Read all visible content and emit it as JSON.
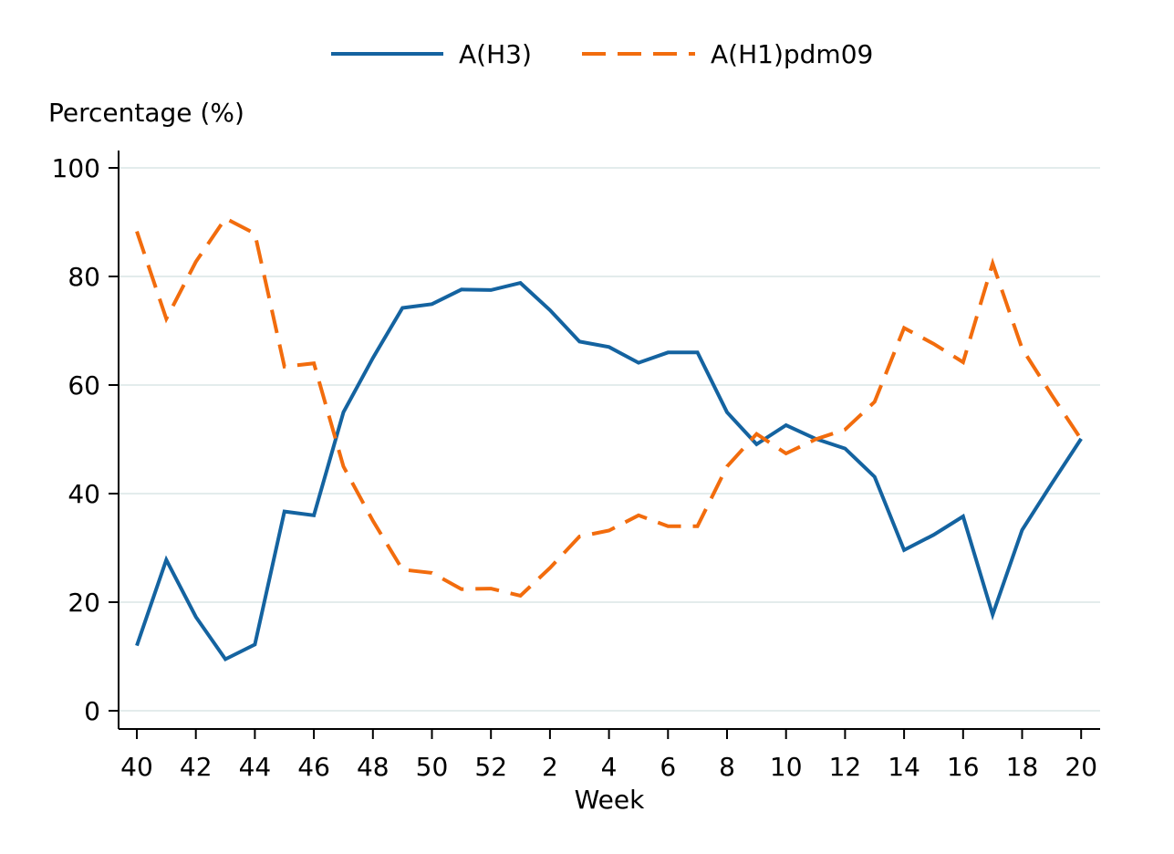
{
  "chart_data": {
    "type": "line",
    "xlabel": "Week",
    "ylabel": "Percentage (%)",
    "ylim": [
      0,
      100
    ],
    "yticks": [
      0,
      20,
      40,
      60,
      80,
      100
    ],
    "grid": true,
    "legend_position": "top",
    "categories": [
      "40",
      "41",
      "42",
      "43",
      "44",
      "45",
      "46",
      "47",
      "48",
      "49",
      "50",
      "51",
      "52",
      "1",
      "2",
      "3",
      "4",
      "5",
      "6",
      "7",
      "8",
      "9",
      "10",
      "11",
      "12",
      "13",
      "14",
      "15",
      "16",
      "17",
      "18",
      "19",
      "20"
    ],
    "xtick_labels": [
      "40",
      "42",
      "44",
      "46",
      "48",
      "50",
      "52",
      "2",
      "4",
      "6",
      "8",
      "10",
      "12",
      "14",
      "16",
      "18",
      "20"
    ],
    "series": [
      {
        "name": "A(H3)",
        "color": "#1463a0",
        "dash": "solid",
        "values": [
          12,
          27.8,
          17.3,
          9.5,
          12.2,
          36.7,
          36,
          55,
          65,
          74.2,
          74.9,
          77.6,
          77.5,
          78.8,
          73.8,
          68,
          67,
          64.1,
          66,
          66,
          55,
          49.1,
          52.6,
          50.1,
          48.3,
          43.1,
          29.6,
          32.4,
          35.8,
          17.7,
          33.3,
          41.8,
          50.1
        ]
      },
      {
        "name": "A(H1)pdm09",
        "color": "#f26c0d",
        "dash": "dashed",
        "values": [
          88.3,
          72.2,
          82.7,
          90.7,
          87.9,
          63.4,
          64,
          45,
          35,
          26,
          25.4,
          22.4,
          22.5,
          21.2,
          26.3,
          32.1,
          33.2,
          36,
          34,
          34,
          45,
          51,
          47.4,
          50,
          51.8,
          56.9,
          70.5,
          67.6,
          64.2,
          82.4,
          66.7,
          58.2,
          50
        ]
      }
    ]
  }
}
